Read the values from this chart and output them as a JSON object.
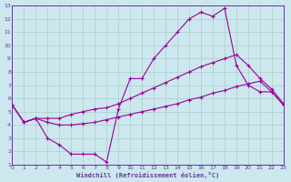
{
  "xlabel": "Windchill (Refroidissement éolien,°C)",
  "bg_color": "#cce8ee",
  "line_color": "#990099",
  "grid_color": "#aacccc",
  "axis_color": "#663399",
  "xlim": [
    0,
    23
  ],
  "ylim": [
    1,
    13
  ],
  "line1_x": [
    0,
    1,
    2,
    3,
    4,
    5,
    6,
    7,
    8,
    9,
    10,
    11,
    12,
    13,
    14,
    15,
    16,
    17,
    18,
    19,
    20,
    21,
    22,
    23
  ],
  "line1_y": [
    5.5,
    4.2,
    4.5,
    3.0,
    2.5,
    1.8,
    1.8,
    1.8,
    1.2,
    5.2,
    7.5,
    7.5,
    9.0,
    10.0,
    11.0,
    12.0,
    12.5,
    12.2,
    12.8,
    8.5,
    7.0,
    6.5,
    6.5,
    5.5
  ],
  "line2_x": [
    0,
    1,
    2,
    3,
    4,
    5,
    6,
    7,
    8,
    9,
    10,
    11,
    12,
    13,
    14,
    15,
    16,
    17,
    18,
    19,
    20,
    21,
    22,
    23
  ],
  "line2_y": [
    5.5,
    4.2,
    4.5,
    4.5,
    4.5,
    4.8,
    5.0,
    5.2,
    5.3,
    5.6,
    6.0,
    6.4,
    6.8,
    7.2,
    7.6,
    8.0,
    8.4,
    8.7,
    9.0,
    9.3,
    8.5,
    7.5,
    6.7,
    5.6
  ],
  "line3_x": [
    0,
    1,
    2,
    3,
    4,
    5,
    6,
    7,
    8,
    9,
    10,
    11,
    12,
    13,
    14,
    15,
    16,
    17,
    18,
    19,
    20,
    21,
    22,
    23
  ],
  "line3_y": [
    5.5,
    4.2,
    4.5,
    4.2,
    4.0,
    4.0,
    4.1,
    4.2,
    4.4,
    4.6,
    4.8,
    5.0,
    5.2,
    5.4,
    5.6,
    5.9,
    6.1,
    6.4,
    6.6,
    6.9,
    7.1,
    7.3,
    6.5,
    5.5
  ]
}
